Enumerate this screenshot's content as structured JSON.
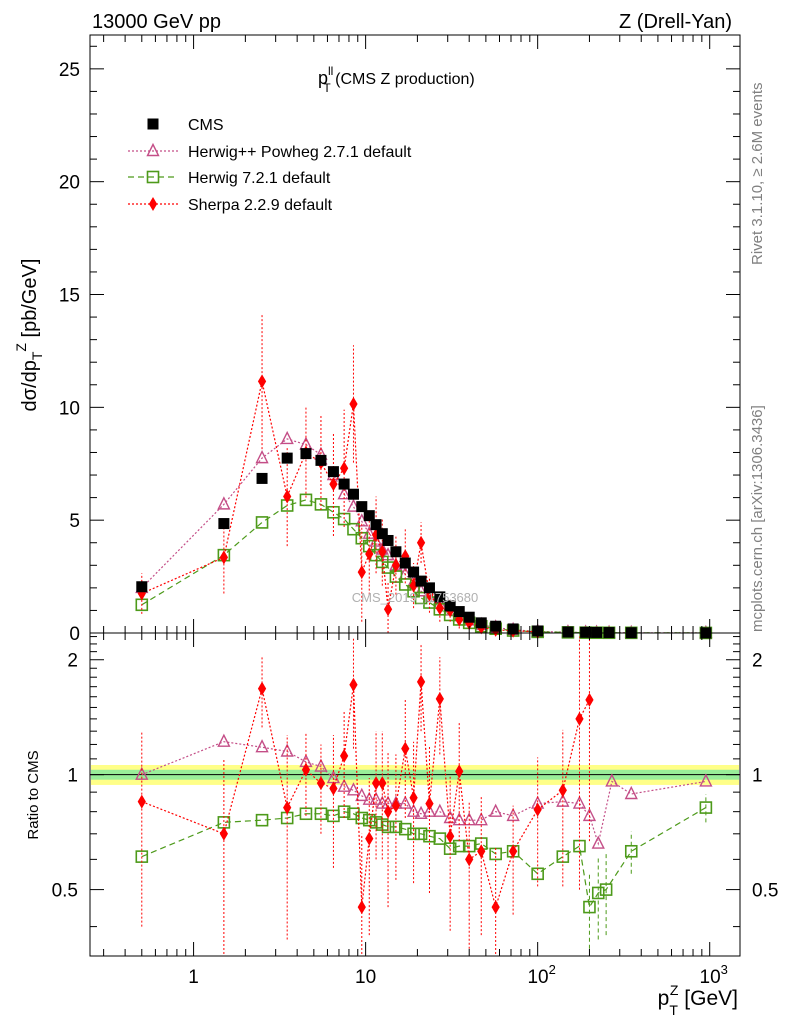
{
  "header": {
    "left": "13000 GeV pp",
    "right": "Z (Drell-Yan)",
    "side_top": "Rivet 3.1.10, ≥ 2.6M events",
    "side_bottom": "mcplots.cern.ch [arXiv:1306.3436]",
    "watermark": "CMS_2019_I1753680"
  },
  "chart_data": [
    {
      "type": "scatter",
      "panel": "main",
      "title": "p_T^ll (CMS Z production)",
      "title_main": "p",
      "title_sup": "ll",
      "title_sub": "T",
      "title_rest": " (CMS Z production)",
      "ylabel": "dσ/dp_T^Z [pb/GeV]",
      "xlabel": "p_T^Z [GeV]",
      "xscale": "log",
      "xlim": [
        0.25,
        1500
      ],
      "ylim": [
        0,
        26.5
      ],
      "yticks": [
        0,
        5,
        10,
        15,
        20,
        25
      ],
      "ytick_labels": [
        "0",
        "5",
        "10",
        "15",
        "20",
        "25"
      ],
      "legend_position": "top-left",
      "series": [
        {
          "name": "CMS",
          "color": "#000000",
          "marker": "filled-square",
          "x": [
            0.5,
            1.5,
            2.5,
            3.5,
            4.5,
            5.5,
            6.5,
            7.5,
            8.5,
            9.5,
            10.5,
            11.5,
            12.5,
            13.5,
            15,
            17,
            19,
            21,
            23.5,
            27,
            31,
            35,
            40,
            47,
            57,
            72,
            100,
            150,
            190,
            220,
            260,
            350,
            950
          ],
          "y": [
            2.05,
            4.85,
            6.85,
            7.75,
            7.95,
            7.65,
            7.15,
            6.6,
            6.15,
            5.6,
            5.2,
            4.8,
            4.4,
            4.1,
            3.6,
            3.1,
            2.7,
            2.3,
            2.0,
            1.6,
            1.2,
            0.95,
            0.7,
            0.45,
            0.3,
            0.18,
            0.09,
            0.045,
            0.03,
            0.025,
            0.02,
            0.012,
            0.004
          ]
        },
        {
          "name": "Herwig++ Powheg 2.7.1 default",
          "color": "#c44e87",
          "marker": "open-triangle",
          "line": "dotted",
          "x": [
            0.5,
            1.5,
            2.5,
            3.5,
            4.5,
            5.5,
            6.5,
            7.5,
            8.5,
            9.5,
            10.5,
            11.5,
            12.5,
            13.5,
            15,
            17,
            19,
            21,
            23.5,
            27,
            31,
            35,
            40,
            47,
            57,
            72,
            100,
            150,
            190,
            220,
            260,
            350,
            950
          ],
          "y": [
            2.0,
            5.7,
            7.75,
            8.6,
            8.35,
            7.9,
            7.0,
            6.15,
            5.6,
            4.95,
            4.4,
            4.05,
            3.7,
            3.45,
            3.0,
            2.6,
            2.25,
            1.85,
            1.6,
            1.3,
            1.0,
            0.75,
            0.56,
            0.36,
            0.25,
            0.14,
            0.07,
            0.035,
            0.025,
            0.02,
            0.015,
            0.01,
            0.004
          ]
        },
        {
          "name": "Herwig 7.2.1 default",
          "color": "#4d9a1a",
          "marker": "open-square",
          "line": "dashed",
          "x": [
            0.5,
            1.5,
            2.5,
            3.5,
            4.5,
            5.5,
            6.5,
            7.5,
            8.5,
            9.5,
            10.5,
            11.5,
            12.5,
            13.5,
            15,
            17,
            19,
            21,
            23.5,
            27,
            31,
            35,
            40,
            47,
            57,
            72,
            100,
            150,
            190,
            220,
            260,
            350,
            950
          ],
          "y": [
            1.25,
            3.45,
            4.9,
            5.65,
            5.9,
            5.7,
            5.35,
            5.05,
            4.6,
            4.2,
            3.85,
            3.45,
            3.15,
            2.9,
            2.5,
            2.15,
            1.85,
            1.55,
            1.35,
            1.05,
            0.8,
            0.6,
            0.45,
            0.3,
            0.19,
            0.11,
            0.05,
            0.028,
            0.015,
            0.012,
            0.01,
            0.008,
            0.003
          ]
        },
        {
          "name": "Sherpa 2.2.9 default",
          "color": "#ff0000",
          "marker": "filled-diamond",
          "line": "dotted",
          "x": [
            0.5,
            1.5,
            2.5,
            3.5,
            4.5,
            5.5,
            6.5,
            7.5,
            8.5,
            9.5,
            10.5,
            11.5,
            12.5,
            13.5,
            15,
            17,
            19,
            21,
            23.5,
            27,
            31,
            35,
            40,
            47,
            57,
            72,
            100
          ],
          "y": [
            1.75,
            3.35,
            11.15,
            6.05,
            8.0,
            7.55,
            6.6,
            7.3,
            10.15,
            2.7,
            3.5,
            4.35,
            3.6,
            1.05,
            3.0,
            3.4,
            2.1,
            4.0,
            1.7,
            1.1,
            1.0,
            0.6,
            0.45,
            0.25,
            0.14,
            0.1,
            0.05
          ],
          "yerr": [
            0.9,
            1.6,
            3.0,
            2.2,
            2.0,
            2.1,
            2.3,
            2.6,
            2.6,
            2.2,
            1.8,
            1.7,
            1.5,
            1.2,
            1.3,
            1.2,
            1.0,
            0.9,
            0.8,
            0.6,
            0.5,
            0.4,
            0.3,
            0.2,
            0.1,
            0.08,
            0.05
          ]
        }
      ],
      "yticks_label_values": [
        5,
        10,
        15,
        20,
        25
      ]
    },
    {
      "type": "scatter",
      "panel": "ratio",
      "ylabel": "Ratio to CMS",
      "xscale": "log",
      "xlim": [
        0.25,
        1500
      ],
      "ylim": [
        0.335,
        2.35
      ],
      "yticks": [
        0.5,
        1,
        2
      ],
      "ytick_labels": [
        "0.5",
        "1",
        "2"
      ],
      "xticks": [
        1,
        10,
        100,
        1000
      ],
      "xtick_labels": [
        [
          "1",
          ""
        ],
        [
          "10",
          ""
        ],
        [
          "10",
          "2"
        ],
        [
          "10",
          "3"
        ]
      ],
      "bands": {
        "inner_color": "#99ee99",
        "outer_color": "#ffff88",
        "inner_halfwidth": 0.03,
        "outer_halfwidth": 0.06
      },
      "series": [
        {
          "name": "Herwig++ Powheg 2.7.1 default",
          "x": [
            0.5,
            1.5,
            2.5,
            3.5,
            4.5,
            5.5,
            6.5,
            7.5,
            8.5,
            9.5,
            10.5,
            11.5,
            12.5,
            13.5,
            15,
            17,
            19,
            21,
            23.5,
            27,
            31,
            35,
            40,
            47,
            57,
            72,
            100,
            140,
            175,
            200,
            225,
            270,
            350,
            950
          ],
          "y": [
            1.0,
            1.22,
            1.18,
            1.15,
            1.08,
            1.05,
            0.98,
            0.93,
            0.91,
            0.88,
            0.86,
            0.86,
            0.84,
            0.84,
            0.84,
            0.84,
            0.8,
            0.79,
            0.8,
            0.8,
            0.77,
            0.76,
            0.76,
            0.76,
            0.8,
            0.78,
            0.84,
            0.85,
            0.84,
            0.78,
            0.66,
            0.96,
            0.89,
            0.96
          ]
        },
        {
          "name": "Herwig 7.2.1 default",
          "x": [
            0.5,
            1.5,
            2.5,
            3.5,
            4.5,
            5.5,
            6.5,
            7.5,
            8.5,
            9.5,
            10.5,
            11.5,
            12.5,
            13.5,
            15,
            17,
            19,
            21,
            23.5,
            27,
            31,
            35,
            40,
            47,
            57,
            72,
            100,
            140,
            175,
            200,
            225,
            250,
            350,
            950
          ],
          "y": [
            0.61,
            0.75,
            0.76,
            0.77,
            0.79,
            0.79,
            0.78,
            0.8,
            0.79,
            0.77,
            0.76,
            0.75,
            0.74,
            0.73,
            0.73,
            0.72,
            0.7,
            0.7,
            0.69,
            0.68,
            0.64,
            0.65,
            0.65,
            0.66,
            0.62,
            0.63,
            0.55,
            0.61,
            0.65,
            0.45,
            0.49,
            0.5,
            0.63,
            0.82
          ],
          "yerr": [
            0,
            0,
            0,
            0,
            0,
            0,
            0,
            0,
            0,
            0,
            0,
            0,
            0,
            0,
            0,
            0,
            0,
            0,
            0,
            0,
            0,
            0,
            0,
            0,
            0,
            0,
            0,
            0,
            0,
            0.1,
            0.12,
            0.12,
            0.08,
            0.07
          ]
        },
        {
          "name": "Sherpa 2.2.9 default",
          "x": [
            0.5,
            1.5,
            2.5,
            3.5,
            4.5,
            5.5,
            6.5,
            7.5,
            8.5,
            9.5,
            10.5,
            11.5,
            12.5,
            13.5,
            15,
            17,
            19,
            21,
            23.5,
            27,
            31,
            35,
            40,
            47,
            57,
            72,
            100,
            140,
            175,
            200
          ],
          "y": [
            0.85,
            0.7,
            1.68,
            0.82,
            1.03,
            0.95,
            0.92,
            1.12,
            1.72,
            0.45,
            0.68,
            0.95,
            0.95,
            0.8,
            0.83,
            1.17,
            0.87,
            1.75,
            0.84,
            1.58,
            0.69,
            1.02,
            0.6,
            0.63,
            0.45,
            0.63,
            0.81,
            0.91,
            1.4,
            1.57
          ],
          "yerr": [
            0.45,
            0.4,
            0.35,
            0.45,
            0.25,
            0.25,
            0.35,
            0.35,
            0.55,
            0.25,
            0.3,
            0.35,
            0.35,
            0.35,
            0.3,
            0.4,
            0.35,
            0.45,
            0.35,
            0.45,
            0.3,
            0.35,
            0.25,
            0.25,
            0.2,
            0.2,
            0.3,
            0.4,
            0.9,
            0.9
          ]
        }
      ]
    }
  ]
}
